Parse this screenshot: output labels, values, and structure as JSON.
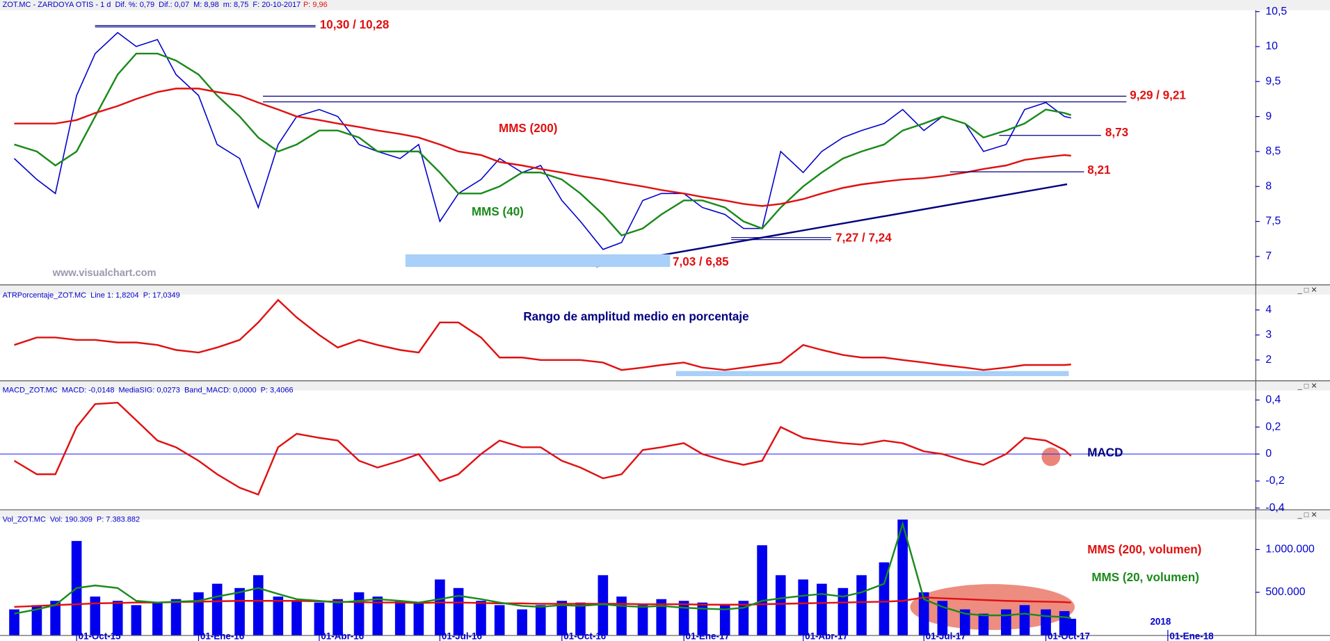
{
  "chart_data": [
    {
      "type": "line",
      "title": "ZOT.MC - ZARDOYA OTIS - 1 d  Dif. %: 0,79  Dif.: 0,07  M: 8,98  m: 8,75  F: 20-10-2017",
      "price_label": "P: 9,96",
      "watermark": "www.visualchart.com",
      "x": [
        "2015-08-15",
        "2015-09-01",
        "2015-09-15",
        "2015-10-01",
        "2015-10-15",
        "2015-11-01",
        "2015-11-15",
        "2015-12-01",
        "2015-12-15",
        "2016-01-01",
        "2016-01-15",
        "2016-02-01",
        "2016-02-15",
        "2016-03-01",
        "2016-03-15",
        "2016-04-01",
        "2016-04-15",
        "2016-05-01",
        "2016-05-15",
        "2016-06-01",
        "2016-06-15",
        "2016-07-01",
        "2016-07-15",
        "2016-08-01",
        "2016-08-15",
        "2016-09-01",
        "2016-09-15",
        "2016-10-01",
        "2016-10-15",
        "2016-11-01",
        "2016-11-15",
        "2016-12-01",
        "2016-12-15",
        "2017-01-01",
        "2017-01-15",
        "2017-02-01",
        "2017-02-15",
        "2017-03-01",
        "2017-03-15",
        "2017-04-01",
        "2017-04-15",
        "2017-05-01",
        "2017-05-15",
        "2017-06-01",
        "2017-06-15",
        "2017-07-01",
        "2017-07-15",
        "2017-08-01",
        "2017-08-15",
        "2017-09-01",
        "2017-09-15",
        "2017-10-01",
        "2017-10-15",
        "2017-10-20"
      ],
      "xlim": [
        "2015-08-10",
        "2018-03-08"
      ],
      "ylim": [
        6.6,
        10.52
      ],
      "yticks": [
        7,
        {
          "value": 7.5,
          "label": "7,5"
        },
        8,
        {
          "value": 8.5,
          "label": "8,5"
        },
        9,
        {
          "value": 9.5,
          "label": "9,5"
        },
        10,
        {
          "value": 10.5,
          "label": "10,5"
        }
      ],
      "series": [
        {
          "color": "#0000cc",
          "values": [
            8.4,
            8.1,
            7.9,
            9.3,
            9.9,
            10.2,
            10.0,
            10.1,
            9.6,
            9.3,
            8.6,
            8.4,
            7.7,
            8.6,
            9.0,
            9.1,
            9.0,
            8.6,
            8.5,
            8.4,
            8.6,
            7.5,
            7.9,
            8.1,
            8.4,
            8.2,
            8.3,
            7.8,
            7.5,
            7.1,
            7.2,
            7.8,
            7.9,
            7.9,
            7.7,
            7.6,
            7.4,
            7.4,
            8.5,
            8.2,
            8.5,
            8.7,
            8.8,
            8.9,
            9.1,
            8.8,
            9.0,
            8.9,
            8.5,
            8.6,
            9.1,
            9.2,
            9.0,
            8.98
          ]
        },
        {
          "name": "MMS (40)",
          "color": "#1a8a1a",
          "values": [
            8.6,
            8.5,
            8.3,
            8.5,
            9.0,
            9.6,
            9.9,
            9.9,
            9.8,
            9.6,
            9.3,
            9.0,
            8.7,
            8.5,
            8.6,
            8.8,
            8.8,
            8.7,
            8.5,
            8.5,
            8.5,
            8.2,
            7.9,
            7.9,
            8.0,
            8.2,
            8.2,
            8.1,
            7.9,
            7.6,
            7.3,
            7.4,
            7.6,
            7.8,
            7.8,
            7.7,
            7.5,
            7.4,
            7.7,
            8.0,
            8.2,
            8.4,
            8.5,
            8.6,
            8.8,
            8.9,
            9.0,
            8.9,
            8.7,
            8.8,
            8.9,
            9.1,
            9.05,
            9.02
          ]
        },
        {
          "name": "MMS (200)",
          "color": "#e01010",
          "values": [
            8.9,
            8.9,
            8.9,
            8.95,
            9.05,
            9.15,
            9.25,
            9.35,
            9.4,
            9.4,
            9.35,
            9.3,
            9.2,
            9.1,
            9.0,
            8.95,
            8.9,
            8.85,
            8.8,
            8.75,
            8.7,
            8.6,
            8.5,
            8.45,
            8.35,
            8.3,
            8.25,
            8.2,
            8.15,
            8.1,
            8.05,
            8.0,
            7.95,
            7.9,
            7.85,
            7.8,
            7.75,
            7.72,
            7.75,
            7.82,
            7.9,
            7.98,
            8.03,
            8.07,
            8.1,
            8.12,
            8.15,
            8.2,
            8.25,
            8.3,
            8.38,
            8.42,
            8.45,
            8.44
          ]
        }
      ],
      "annotations": [
        {
          "text": "10,30 / 10,28",
          "levels": [
            10.3,
            10.28
          ]
        },
        {
          "text": "9,29 / 9,21",
          "levels": [
            9.29,
            9.21
          ]
        },
        {
          "text": "8,73",
          "levels": [
            8.73
          ]
        },
        {
          "text": "8,21",
          "levels": [
            8.21
          ]
        },
        {
          "text": "7,27 / 7,24",
          "levels": [
            7.27,
            7.24
          ]
        },
        {
          "text": "7,03 / 6,85",
          "levels": [
            7.03,
            6.85
          ]
        }
      ]
    },
    {
      "type": "line",
      "title": "ATRPorcentaje_ZOT.MC  Line 1: 1,8204  P: 17,0349",
      "annotation": "Rango de amplitud medio en porcentaje",
      "x": [
        "2015-08-15",
        "2015-09-01",
        "2015-09-15",
        "2015-10-01",
        "2015-10-15",
        "2015-11-01",
        "2015-11-15",
        "2015-12-01",
        "2015-12-15",
        "2016-01-01",
        "2016-01-15",
        "2016-02-01",
        "2016-02-15",
        "2016-03-01",
        "2016-03-15",
        "2016-04-01",
        "2016-04-15",
        "2016-05-01",
        "2016-05-15",
        "2016-06-01",
        "2016-06-15",
        "2016-07-01",
        "2016-07-15",
        "2016-08-01",
        "2016-08-15",
        "2016-09-01",
        "2016-09-15",
        "2016-10-01",
        "2016-10-15",
        "2016-11-01",
        "2016-11-15",
        "2016-12-01",
        "2016-12-15",
        "2017-01-01",
        "2017-01-15",
        "2017-02-01",
        "2017-02-15",
        "2017-03-01",
        "2017-03-15",
        "2017-04-01",
        "2017-04-15",
        "2017-05-01",
        "2017-05-15",
        "2017-06-01",
        "2017-06-15",
        "2017-07-01",
        "2017-07-15",
        "2017-08-01",
        "2017-08-15",
        "2017-09-01",
        "2017-09-15",
        "2017-10-01",
        "2017-10-15",
        "2017-10-20"
      ],
      "xlim": [
        "2015-08-10",
        "2018-03-08"
      ],
      "ylim": [
        1.22,
        4.58
      ],
      "yticks": [
        2,
        3,
        4
      ],
      "series": [
        {
          "color": "#e01010",
          "values": [
            2.6,
            2.9,
            2.9,
            2.8,
            2.8,
            2.7,
            2.7,
            2.6,
            2.4,
            2.3,
            2.5,
            2.8,
            3.5,
            4.4,
            3.7,
            3.0,
            2.5,
            2.8,
            2.6,
            2.4,
            2.3,
            3.5,
            3.5,
            2.9,
            2.1,
            2.1,
            2.0,
            2.0,
            2.0,
            1.9,
            1.6,
            1.7,
            1.8,
            1.9,
            1.7,
            1.6,
            1.7,
            1.8,
            1.9,
            2.6,
            2.4,
            2.2,
            2.1,
            2.1,
            2.0,
            1.9,
            1.8,
            1.7,
            1.6,
            1.7,
            1.8,
            1.8,
            1.8,
            1.82
          ]
        }
      ]
    },
    {
      "type": "line",
      "title": "MACD_ZOT.MC  MACD: -0,0148  MediaSIG: 0,0273  Band_MACD: 0,0000  P: 3,4066",
      "annotation": "MACD",
      "x": [
        "2015-08-15",
        "2015-09-01",
        "2015-09-15",
        "2015-10-01",
        "2015-10-15",
        "2015-11-01",
        "2015-11-15",
        "2015-12-01",
        "2015-12-15",
        "2016-01-01",
        "2016-01-15",
        "2016-02-01",
        "2016-02-15",
        "2016-03-01",
        "2016-03-15",
        "2016-04-01",
        "2016-04-15",
        "2016-05-01",
        "2016-05-15",
        "2016-06-01",
        "2016-06-15",
        "2016-07-01",
        "2016-07-15",
        "2016-08-01",
        "2016-08-15",
        "2016-09-01",
        "2016-09-15",
        "2016-10-01",
        "2016-10-15",
        "2016-11-01",
        "2016-11-15",
        "2016-12-01",
        "2016-12-15",
        "2017-01-01",
        "2017-01-15",
        "2017-02-01",
        "2017-02-15",
        "2017-03-01",
        "2017-03-15",
        "2017-04-01",
        "2017-04-15",
        "2017-05-01",
        "2017-05-15",
        "2017-06-01",
        "2017-06-15",
        "2017-07-01",
        "2017-07-15",
        "2017-08-01",
        "2017-08-15",
        "2017-09-01",
        "2017-09-15",
        "2017-10-01",
        "2017-10-15",
        "2017-10-20"
      ],
      "xlim": [
        "2015-08-10",
        "2018-03-08"
      ],
      "ylim": [
        -0.41,
        0.47
      ],
      "yticks": [
        {
          "value": -0.4,
          "label": "-0,4"
        },
        {
          "value": -0.2,
          "label": "-0,2"
        },
        0,
        {
          "value": 0.2,
          "label": "0,2"
        },
        {
          "value": 0.4,
          "label": "0,4"
        }
      ],
      "series": [
        {
          "color": "#e01010",
          "values": [
            -0.05,
            -0.15,
            -0.15,
            0.2,
            0.37,
            0.38,
            0.25,
            0.1,
            0.05,
            -0.05,
            -0.15,
            -0.25,
            -0.3,
            0.05,
            0.15,
            0.12,
            0.1,
            -0.05,
            -0.1,
            -0.05,
            0.0,
            -0.2,
            -0.15,
            0.0,
            0.1,
            0.05,
            0.05,
            -0.05,
            -0.1,
            -0.18,
            -0.15,
            0.03,
            0.05,
            0.08,
            0.0,
            -0.05,
            -0.08,
            -0.05,
            0.2,
            0.12,
            0.1,
            0.08,
            0.07,
            0.1,
            0.08,
            0.02,
            0.0,
            -0.05,
            -0.08,
            0.0,
            0.12,
            0.1,
            0.03,
            -0.0148
          ]
        }
      ]
    },
    {
      "type": "bar",
      "title": "Vol_ZOT.MC  Vol: 190.309  P: 7.383.882",
      "year_label": "2018",
      "x": [
        "2015-08-15",
        "2015-09-01",
        "2015-09-15",
        "2015-10-01",
        "2015-10-15",
        "2015-11-01",
        "2015-11-15",
        "2015-12-01",
        "2015-12-15",
        "2016-01-01",
        "2016-01-15",
        "2016-02-01",
        "2016-02-15",
        "2016-03-01",
        "2016-03-15",
        "2016-04-01",
        "2016-04-15",
        "2016-05-01",
        "2016-05-15",
        "2016-06-01",
        "2016-06-15",
        "2016-07-01",
        "2016-07-15",
        "2016-08-01",
        "2016-08-15",
        "2016-09-01",
        "2016-09-15",
        "2016-10-01",
        "2016-10-15",
        "2016-11-01",
        "2016-11-15",
        "2016-12-01",
        "2016-12-15",
        "2017-01-01",
        "2017-01-15",
        "2017-02-01",
        "2017-02-15",
        "2017-03-01",
        "2017-03-15",
        "2017-04-01",
        "2017-04-15",
        "2017-05-01",
        "2017-05-15",
        "2017-06-01",
        "2017-06-15",
        "2017-07-01",
        "2017-07-15",
        "2017-08-01",
        "2017-08-15",
        "2017-09-01",
        "2017-09-15",
        "2017-10-01",
        "2017-10-15",
        "2017-10-20"
      ],
      "xlim": [
        "2015-08-10",
        "2018-03-08"
      ],
      "ylim": [
        0,
        1340000
      ],
      "yticks": [
        {
          "value": 500000,
          "label": "500.000"
        },
        {
          "value": 1000000,
          "label": "1.000.000"
        }
      ],
      "xticks": [
        {
          "value": "2015-10-01",
          "label": "01-Oct-15"
        },
        {
          "value": "2016-01-01",
          "label": "01-Ene-16"
        },
        {
          "value": "2016-04-01",
          "label": "01-Abr-16"
        },
        {
          "value": "2016-07-01",
          "label": "01-Jul-16"
        },
        {
          "value": "2016-10-01",
          "label": "01-Oct-16"
        },
        {
          "value": "2017-01-01",
          "label": "01-Ene-17"
        },
        {
          "value": "2017-04-01",
          "label": "01-Abr-17"
        },
        {
          "value": "2017-07-01",
          "label": "01-Jul-17"
        },
        {
          "value": "2017-10-01",
          "label": "01-Oct-17"
        },
        {
          "value": "2018-01-01",
          "label": "01-Ene-18"
        }
      ],
      "series": [
        {
          "type": "bar",
          "color": "#0000ee",
          "values": [
            300000,
            350000,
            400000,
            1100000,
            450000,
            400000,
            350000,
            380000,
            420000,
            500000,
            600000,
            550000,
            700000,
            450000,
            400000,
            380000,
            420000,
            500000,
            450000,
            400000,
            380000,
            650000,
            550000,
            400000,
            350000,
            300000,
            350000,
            400000,
            380000,
            700000,
            450000,
            350000,
            420000,
            400000,
            380000,
            350000,
            400000,
            1050000,
            700000,
            650000,
            600000,
            550000,
            700000,
            850000,
            1350000,
            500000,
            400000,
            300000,
            250000,
            300000,
            350000,
            300000,
            280000,
            190309
          ]
        },
        {
          "type": "line",
          "name": "MMS (200, volumen)",
          "color": "#e01010",
          "values": [
            330000,
            340000,
            350000,
            360000,
            370000,
            375000,
            380000,
            380000,
            385000,
            390000,
            395000,
            400000,
            400000,
            400000,
            400000,
            395000,
            390000,
            385000,
            380000,
            380000,
            375000,
            380000,
            380000,
            375000,
            370000,
            370000,
            365000,
            365000,
            365000,
            365000,
            365000,
            360000,
            360000,
            360000,
            355000,
            355000,
            355000,
            360000,
            365000,
            370000,
            375000,
            380000,
            385000,
            390000,
            400000,
            440000,
            430000,
            420000,
            410000,
            400000,
            395000,
            390000,
            385000,
            380000
          ]
        },
        {
          "type": "line",
          "name": "MMS (20, volumen)",
          "color": "#1a8a1a",
          "values": [
            250000,
            300000,
            350000,
            550000,
            580000,
            550000,
            400000,
            380000,
            390000,
            400000,
            450000,
            500000,
            550000,
            480000,
            420000,
            400000,
            380000,
            400000,
            420000,
            400000,
            380000,
            420000,
            460000,
            420000,
            380000,
            340000,
            330000,
            350000,
            340000,
            360000,
            340000,
            330000,
            340000,
            320000,
            310000,
            300000,
            320000,
            400000,
            430000,
            460000,
            480000,
            450000,
            500000,
            600000,
            1300000,
            420000,
            330000,
            250000,
            230000,
            230000,
            250000,
            220000,
            210000,
            200000
          ]
        }
      ]
    }
  ]
}
